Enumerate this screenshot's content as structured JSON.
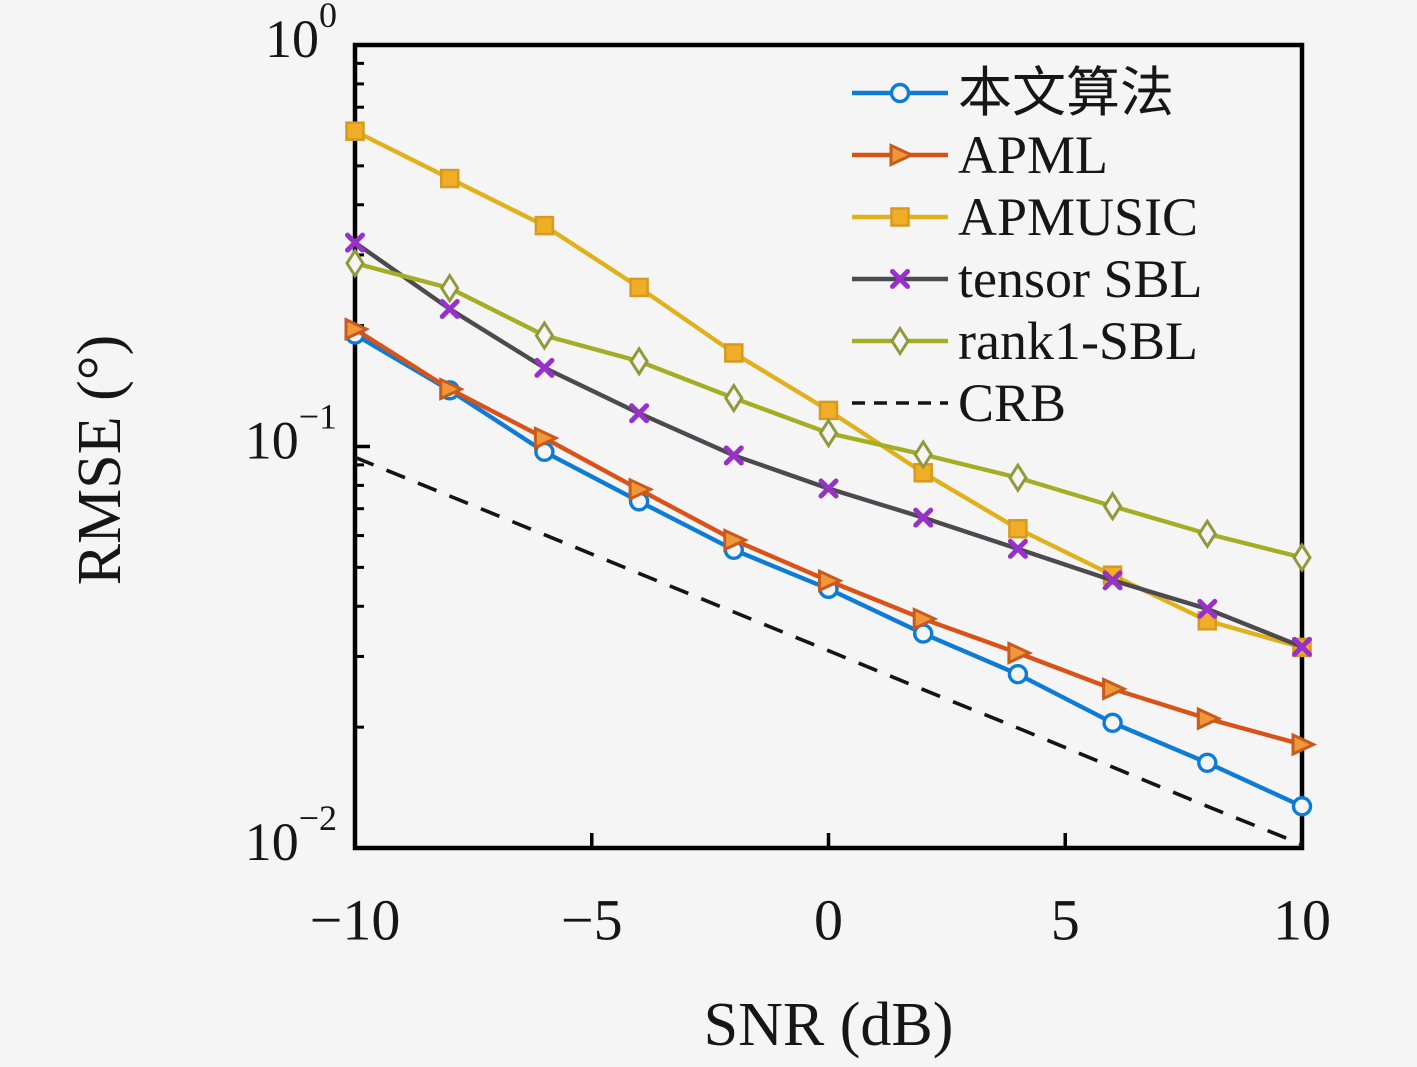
{
  "chart_data": {
    "type": "line",
    "title": "",
    "xlabel": "SNR (dB)",
    "ylabel": "RMSE (°)",
    "yscale": "log",
    "xlim": [
      -10,
      10
    ],
    "ylim": [
      0.01,
      1
    ],
    "grid": false,
    "legend_position": "top-right-inside",
    "x": [
      -10,
      -8,
      -6,
      -4,
      -2,
      0,
      2,
      4,
      6,
      8,
      10
    ],
    "xticks": {
      "values": [
        -10,
        -5,
        0,
        5,
        10
      ],
      "labels": [
        "−10",
        "−5",
        "0",
        "5",
        "10"
      ]
    },
    "yticks": [
      {
        "value": 1,
        "mantissa": "10",
        "exponent": "0"
      },
      {
        "value": 0.1,
        "mantissa": "10",
        "exponent": "−1"
      },
      {
        "value": 0.01,
        "mantissa": "10",
        "exponent": "−2"
      }
    ],
    "series": [
      {
        "id": "proposed",
        "label": "本文算法",
        "line_color": "#0e7cd4",
        "marker": "circle",
        "marker_color": "#0e7cd4",
        "line_style": "solid",
        "values": [
          0.19,
          0.138,
          0.097,
          0.073,
          0.0553,
          0.0442,
          0.0342,
          0.0271,
          0.0205,
          0.0163,
          0.0127
        ]
      },
      {
        "id": "apml",
        "label": "APML",
        "line_color": "#d95319",
        "marker": "triangle-right",
        "marker_color": "#c75a1d",
        "marker_fill": "#f0973a",
        "line_style": "solid",
        "values": [
          0.196,
          0.139,
          0.105,
          0.0782,
          0.0585,
          0.0463,
          0.0372,
          0.0306,
          0.0249,
          0.021,
          0.0181
        ]
      },
      {
        "id": "apmusic",
        "label": "APMUSIC",
        "line_color": "#e0b11c",
        "marker": "square",
        "marker_color": "#d59a1e",
        "marker_fill": "#f0ad28",
        "line_style": "solid",
        "values": [
          0.61,
          0.465,
          0.355,
          0.249,
          0.171,
          0.123,
          0.086,
          0.0624,
          0.0478,
          0.0368,
          0.0316
        ]
      },
      {
        "id": "tensor-sbl",
        "label": "tensor SBL",
        "line_color": "#4c4a4f",
        "marker": "x",
        "marker_color": "#9a30cb",
        "line_style": "solid",
        "values": [
          0.322,
          0.22,
          0.157,
          0.121,
          0.095,
          0.0786,
          0.0665,
          0.0556,
          0.0464,
          0.0394,
          0.0317
        ]
      },
      {
        "id": "rank1-sbl",
        "label": "rank1-SBL",
        "line_color": "#a4ad24",
        "marker": "diamond",
        "marker_color": "#8f9a3c",
        "line_style": "solid",
        "values": [
          0.286,
          0.248,
          0.189,
          0.163,
          0.132,
          0.108,
          0.0955,
          0.0836,
          0.071,
          0.0606,
          0.0529
        ]
      },
      {
        "id": "crb",
        "label": "CRB",
        "line_color": "#141414",
        "marker": "none",
        "line_style": "dashed",
        "values": [
          0.094,
          0.0753,
          0.0603,
          0.0483,
          0.0387,
          0.031,
          0.0248,
          0.0199,
          0.0159,
          0.0127,
          0.0102
        ]
      }
    ]
  },
  "colors": {
    "background": "#f5f5f6",
    "frame": "#000000",
    "text": "#161616"
  }
}
